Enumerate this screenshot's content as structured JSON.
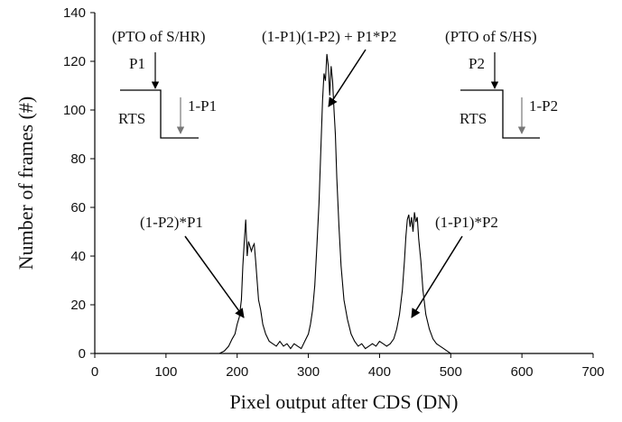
{
  "chart_data": {
    "type": "line",
    "xlabel": "Pixel output after CDS (DN)",
    "ylabel": "Number of frames (#)",
    "xlim": [
      0,
      700
    ],
    "ylim": [
      0,
      140
    ],
    "xticks": [
      0,
      100,
      200,
      300,
      400,
      500,
      600,
      700
    ],
    "yticks": [
      0,
      20,
      40,
      60,
      80,
      100,
      120,
      140
    ],
    "grid": false,
    "legend": "none",
    "line_color": "#000000",
    "series": [
      {
        "x": [
          80,
          100,
          120,
          140,
          160,
          175,
          182,
          188,
          193,
          197,
          200,
          203,
          206,
          208,
          210,
          212,
          214,
          216,
          218,
          220,
          222,
          224,
          226,
          228,
          230,
          233,
          236,
          240,
          245,
          250,
          255,
          260,
          265,
          270,
          275,
          280,
          285,
          290,
          295,
          300,
          303,
          306,
          309,
          312,
          315,
          318,
          320,
          322,
          324,
          326,
          328,
          330,
          332,
          334,
          336,
          338,
          340,
          343,
          346,
          350,
          355,
          360,
          365,
          370,
          375,
          380,
          385,
          390,
          395,
          400,
          405,
          410,
          415,
          420,
          424,
          428,
          432,
          435,
          437,
          439,
          441,
          443,
          445,
          447,
          449,
          451,
          453,
          455,
          458,
          461,
          465,
          470,
          475,
          480,
          485,
          490,
          495,
          500,
          550,
          600
        ],
        "y": [
          0,
          0,
          0,
          0,
          0,
          0,
          1,
          3,
          6,
          8,
          12,
          15,
          22,
          36,
          46,
          55,
          40,
          46,
          44,
          42,
          44,
          45,
          38,
          30,
          22,
          18,
          12,
          8,
          5,
          4,
          3,
          5,
          3,
          4,
          2,
          4,
          3,
          2,
          5,
          8,
          12,
          18,
          28,
          44,
          62,
          88,
          104,
          115,
          112,
          123,
          118,
          106,
          118,
          112,
          100,
          90,
          72,
          52,
          36,
          22,
          14,
          8,
          5,
          3,
          4,
          2,
          3,
          4,
          3,
          5,
          4,
          3,
          4,
          6,
          10,
          16,
          26,
          38,
          48,
          55,
          57,
          52,
          56,
          50,
          58,
          54,
          56,
          47,
          38,
          26,
          16,
          10,
          6,
          4,
          3,
          2,
          1,
          0,
          0,
          0
        ]
      }
    ],
    "annotations": [
      {
        "text": "(PTO of S/HR)"
      },
      {
        "text": "(PTO of S/HS)"
      },
      {
        "text": "(1-P1)(1-P2) + P1*P2"
      },
      {
        "text": "(1-P2)*P1"
      },
      {
        "text": "(1-P1)*P2"
      }
    ],
    "insets": [
      {
        "label": "RTS",
        "prob_down": "P1",
        "prob_stay": "1-P1"
      },
      {
        "label": "RTS",
        "prob_down": "P2",
        "prob_stay": "1-P2"
      }
    ]
  }
}
